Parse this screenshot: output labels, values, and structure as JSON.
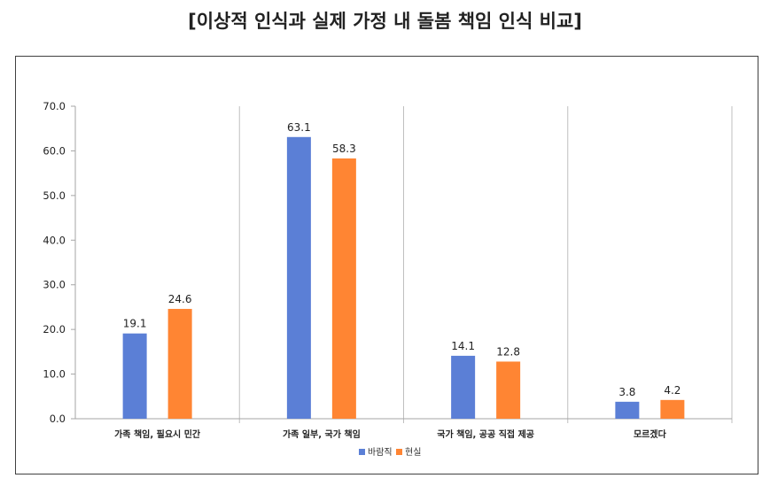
{
  "title": "[이상적 인식과 실제 가정 내 돌봄 책임 인식 비교]",
  "colors": {
    "series0": "#5B7FD6",
    "series1": "#FF8533"
  },
  "chart_data": {
    "type": "bar",
    "title": "[이상적 인식과 실제 가정 내 돌봄 책임 인식 비교]",
    "categories": [
      "가족 책임, 필요시 민간",
      "가족 일부, 국가 책임",
      "국가 책임, 공공 직접 제공",
      "모르겠다"
    ],
    "series": [
      {
        "name": "바람직",
        "values": [
          19.1,
          63.1,
          14.1,
          3.8
        ]
      },
      {
        "name": "현실",
        "values": [
          24.6,
          58.3,
          12.8,
          4.2
        ]
      }
    ],
    "ylim": [
      0,
      70
    ],
    "yticks": [
      "0.0",
      "10.0",
      "20.0",
      "30.0",
      "40.0",
      "50.0",
      "60.0",
      "70.0"
    ],
    "grid": false,
    "legend": "bottom",
    "value_labels": [
      [
        "19.1",
        "63.1",
        "14.1",
        "3.8"
      ],
      [
        "24.6",
        "58.3",
        "12.8",
        "4.2"
      ]
    ]
  }
}
